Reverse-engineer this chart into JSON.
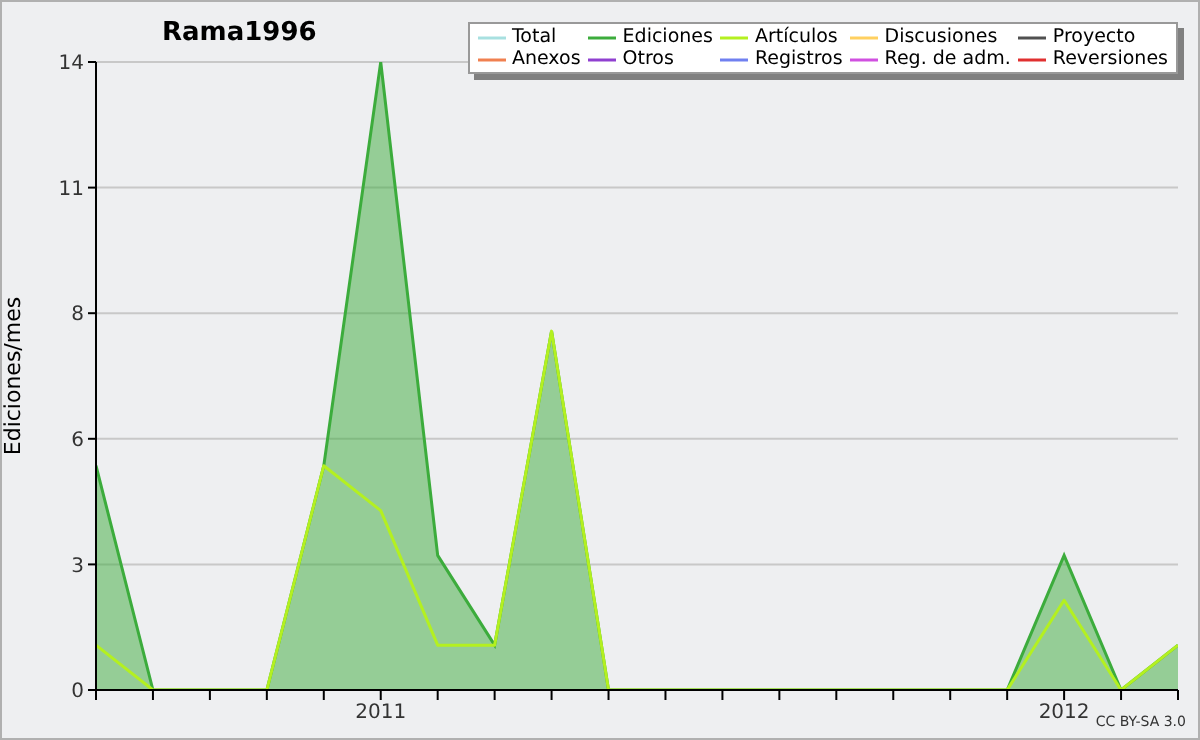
{
  "chart_data": {
    "type": "area",
    "title": "Rama1996",
    "ylabel": "Ediciones/mes",
    "annotations": [
      "CC BY-SA 3.0"
    ],
    "x": [
      "2010-08",
      "2010-09",
      "2010-10",
      "2010-11",
      "2010-12",
      "2011-01",
      "2011-02",
      "2011-03",
      "2011-04",
      "2011-05",
      "2011-06",
      "2011-07",
      "2011-08",
      "2011-09",
      "2011-10",
      "2011-11",
      "2011-12",
      "2012-01",
      "2012-02",
      "2012-03"
    ],
    "series": [
      {
        "name": "Total",
        "type": "line",
        "color": "#a8e0e0",
        "values": [
          null,
          null,
          null,
          null,
          null,
          null,
          null,
          null,
          null,
          null,
          null,
          null,
          null,
          null,
          null,
          null,
          null,
          null,
          null,
          null
        ]
      },
      {
        "name": "Ediciones",
        "color": "#3cac3c",
        "values": [
          5,
          0,
          0,
          0,
          5,
          14,
          3,
          1,
          8,
          0,
          0,
          0,
          0,
          0,
          0,
          0,
          0,
          3,
          0,
          1
        ]
      },
      {
        "name": "Artículos",
        "type": "line",
        "color": "#b4f020",
        "values": [
          1,
          0,
          0,
          0,
          5,
          4,
          1,
          1,
          8,
          0,
          0,
          0,
          0,
          0,
          0,
          0,
          0,
          2,
          0,
          1
        ]
      },
      {
        "name": "Discusiones",
        "type": "line",
        "color": "#ffd060",
        "values": [
          null,
          null,
          null,
          null,
          null,
          null,
          null,
          null,
          null,
          null,
          null,
          null,
          null,
          null,
          null,
          null,
          null,
          null,
          null,
          null
        ]
      },
      {
        "name": "Proyecto",
        "type": "line",
        "color": "#505050",
        "values": [
          null,
          null,
          null,
          null,
          null,
          null,
          null,
          null,
          null,
          null,
          null,
          null,
          null,
          null,
          null,
          null,
          null,
          null,
          null,
          null
        ]
      },
      {
        "name": "Anexos",
        "type": "line",
        "color": "#f08050",
        "values": [
          null,
          null,
          null,
          null,
          null,
          null,
          null,
          null,
          null,
          null,
          null,
          null,
          null,
          null,
          null,
          null,
          null,
          null,
          null,
          null
        ]
      },
      {
        "name": "Otros",
        "type": "line",
        "color": "#9040d0",
        "values": [
          null,
          null,
          null,
          null,
          null,
          null,
          null,
          null,
          null,
          null,
          null,
          null,
          null,
          null,
          null,
          null,
          null,
          null,
          null,
          null
        ]
      },
      {
        "name": "Registros",
        "type": "line",
        "color": "#7080f0",
        "values": [
          null,
          null,
          null,
          null,
          null,
          null,
          null,
          null,
          null,
          null,
          null,
          null,
          null,
          null,
          null,
          null,
          null,
          null,
          null,
          null
        ]
      },
      {
        "name": "Reg. de adm.",
        "type": "line",
        "color": "#d050e0",
        "values": [
          null,
          null,
          null,
          null,
          null,
          null,
          null,
          null,
          null,
          null,
          null,
          null,
          null,
          null,
          null,
          null,
          null,
          null,
          null,
          null
        ]
      },
      {
        "name": "Reversiones",
        "type": "line",
        "color": "#e03030",
        "values": [
          null,
          null,
          null,
          null,
          null,
          null,
          null,
          null,
          null,
          null,
          null,
          null,
          null,
          null,
          null,
          null,
          null,
          null,
          null,
          null
        ]
      }
    ],
    "xlim": [
      "2010-08",
      "2012-03"
    ],
    "xticks": [
      {
        "value": "2010-08",
        "label": null
      },
      {
        "value": "2010-09",
        "label": null
      },
      {
        "value": "2010-10",
        "label": null
      },
      {
        "value": "2010-11",
        "label": null
      },
      {
        "value": "2010-12",
        "label": null
      },
      {
        "value": "2011-01",
        "label": "2011"
      },
      {
        "value": "2011-02",
        "label": null
      },
      {
        "value": "2011-03",
        "label": null
      },
      {
        "value": "2011-04",
        "label": null
      },
      {
        "value": "2011-05",
        "label": null
      },
      {
        "value": "2011-06",
        "label": null
      },
      {
        "value": "2011-07",
        "label": null
      },
      {
        "value": "2011-08",
        "label": null
      },
      {
        "value": "2011-09",
        "label": null
      },
      {
        "value": "2011-10",
        "label": null
      },
      {
        "value": "2011-11",
        "label": null
      },
      {
        "value": "2011-12",
        "label": null
      },
      {
        "value": "2012-01",
        "label": "2012"
      },
      {
        "value": "2012-02",
        "label": null
      },
      {
        "value": "2012-03",
        "label": null
      }
    ],
    "ylim": [
      0,
      14
    ],
    "yticks": [
      0,
      {
        "value": 2.8,
        "label": "3"
      },
      {
        "value": 5.6,
        "label": "6"
      },
      {
        "value": 8.4,
        "label": "8"
      },
      {
        "value": 11.2,
        "label": "11"
      },
      14
    ],
    "grid": "y",
    "legend": "top right",
    "marker": "none",
    "line_style": "solid"
  }
}
